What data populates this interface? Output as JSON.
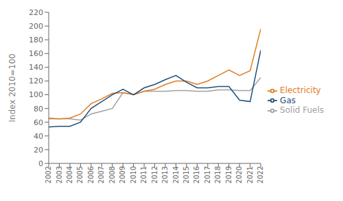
{
  "chart_data": {
    "type": "line",
    "x": [
      2002,
      2003,
      2004,
      2005,
      2006,
      2007,
      2008,
      2009,
      2010,
      2011,
      2012,
      2013,
      2014,
      2015,
      2016,
      2017,
      2018,
      2019,
      2020,
      2021,
      2022
    ],
    "xlim": [
      2002,
      2022
    ],
    "xticks": [
      2002,
      2003,
      2004,
      2005,
      2006,
      2007,
      2008,
      2009,
      2010,
      2011,
      2012,
      2013,
      2014,
      2015,
      2016,
      2017,
      2018,
      2019,
      2020,
      2021,
      2022
    ],
    "ylim": [
      0,
      220
    ],
    "yticks": [
      0,
      20,
      40,
      60,
      80,
      100,
      120,
      140,
      160,
      180,
      200,
      220
    ],
    "ylabel": "Index 2010=100",
    "series": [
      {
        "name": "Solid Fuels",
        "color": "#a0a0a0",
        "values": [
          65,
          65,
          65,
          63,
          72,
          76,
          80,
          103,
          100,
          105,
          105,
          105,
          106,
          106,
          105,
          105,
          107,
          107,
          106,
          106,
          125
        ]
      },
      {
        "name": "Electricity",
        "color": "#e07b20",
        "values": [
          66,
          65,
          66,
          72,
          87,
          94,
          102,
          103,
          100,
          105,
          108,
          115,
          120,
          120,
          115,
          120,
          128,
          136,
          128,
          135,
          196
        ]
      },
      {
        "name": "Gas",
        "color": "#1f4e79",
        "values": [
          53,
          54,
          54,
          60,
          80,
          90,
          100,
          108,
          100,
          110,
          115,
          122,
          128,
          118,
          110,
          110,
          112,
          112,
          92,
          90,
          165
        ]
      }
    ],
    "legend": "right",
    "grid": false
  }
}
